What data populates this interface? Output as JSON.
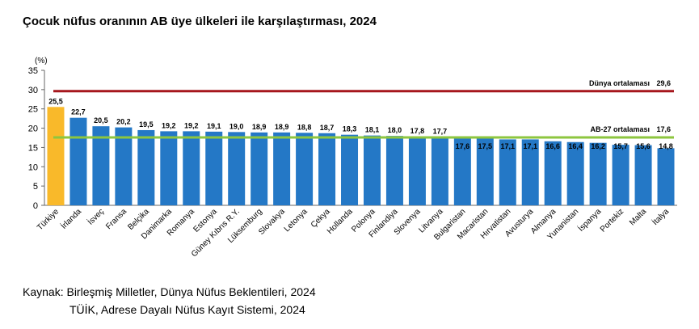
{
  "title": "Çocuk nüfus oranının AB üye ülkeleri ile karşılaştırması, 2024",
  "chart_data": {
    "type": "bar",
    "ylabel": "(%)",
    "ylim": [
      0,
      35
    ],
    "yticks": [
      "0",
      "5",
      "10",
      "15",
      "20",
      "25",
      "30",
      "35"
    ],
    "grid": false,
    "categories": [
      "Türkiye",
      "İrlanda",
      "İsveç",
      "Fransa",
      "Belçika",
      "Danimarka",
      "Romanya",
      "Estonya",
      "Güney Kıbrıs R.Y.",
      "Lüksemburg",
      "Slovakya",
      "Letonya",
      "Çekya",
      "Hollanda",
      "Polonya",
      "Finlandiya",
      "Slovenya",
      "Litvanya",
      "Bulgaristan",
      "Macaristan",
      "Hırvatistan",
      "Avusturya",
      "Almanya",
      "Yunanistan",
      "İspanya",
      "Portekiz",
      "Malta",
      "İtalya"
    ],
    "values": [
      25.5,
      22.7,
      20.5,
      20.2,
      19.5,
      19.2,
      19.2,
      19.1,
      19.0,
      18.9,
      18.9,
      18.8,
      18.7,
      18.3,
      18.1,
      18.0,
      17.8,
      17.7,
      17.6,
      17.5,
      17.1,
      17.1,
      16.6,
      16.4,
      16.2,
      15.7,
      15.6,
      14.8
    ],
    "value_labels": [
      "25,5",
      "22,7",
      "20,5",
      "20,2",
      "19,5",
      "19,2",
      "19,2",
      "19,1",
      "19,0",
      "18,9",
      "18,9",
      "18,8",
      "18,7",
      "18,3",
      "18,1",
      "18,0",
      "17,8",
      "17,7",
      "17,6",
      "17,5",
      "17,1",
      "17,1",
      "16,6",
      "16,4",
      "16,2",
      "15,7",
      "15,6",
      "14,8"
    ],
    "highlight_index": 0,
    "colors": {
      "bar": "#2478c6",
      "highlight": "#f9b92a",
      "world_line": "#a6171d",
      "eu_line": "#8dc63f"
    },
    "reference_lines": [
      {
        "label": "Dünya ortalaması",
        "value": 29.6,
        "value_label": "29,6"
      },
      {
        "label": "AB-27 ortalaması",
        "value": 17.6,
        "value_label": "17,6"
      }
    ]
  },
  "source": {
    "line1": "Kaynak: Birleşmiş Milletler, Dünya Nüfus Beklentileri, 2024",
    "line2": "TÜİK, Adrese Dayalı Nüfus Kayıt Sistemi, 2024"
  }
}
